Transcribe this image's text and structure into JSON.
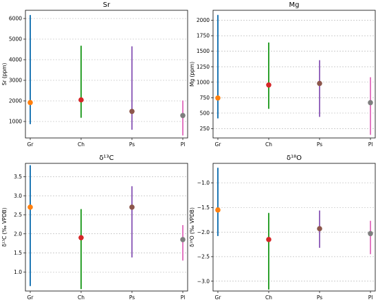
{
  "colors": {
    "Gr": "#1f77b4",
    "Ch": "#2ca02c",
    "Ps": "#9467bd",
    "Pl": "#e377c2",
    "marker_Gr": "#ff7f0e",
    "marker_Ch": "#d62728",
    "marker_Ps": "#8c564b",
    "marker_Pl": "#7f7f7f"
  },
  "chart_data": [
    {
      "type": "scatter",
      "title": "Sr",
      "xlabel": "",
      "ylabel": "Sr (ppm)",
      "categories": [
        "Gr",
        "Ch",
        "Ps",
        "Pl"
      ],
      "ylim": [
        200,
        6400
      ],
      "yticks": [
        1000,
        2000,
        3000,
        4000,
        5000,
        6000
      ],
      "grid": "y",
      "series": [
        {
          "values": [
            1920,
            2050,
            1490,
            1290
          ],
          "min": [
            870,
            1180,
            600,
            320
          ],
          "max": [
            6170,
            4680,
            4650,
            2020
          ]
        }
      ]
    },
    {
      "type": "scatter",
      "title": "Mg",
      "xlabel": "",
      "ylabel": "Mg (ppm)",
      "categories": [
        "Gr",
        "Ch",
        "Ps",
        "Pl"
      ],
      "ylim": [
        100,
        2160
      ],
      "yticks": [
        250,
        500,
        750,
        1000,
        1250,
        1500,
        1750,
        2000
      ],
      "grid": "y",
      "series": [
        {
          "values": [
            745,
            955,
            980,
            670
          ],
          "min": [
            415,
            570,
            440,
            150
          ],
          "max": [
            2085,
            1640,
            1355,
            1080
          ]
        }
      ]
    },
    {
      "type": "scatter",
      "title": "δ¹³C",
      "xlabel": "",
      "ylabel": "δ¹³C (‰ VPDB)",
      "categories": [
        "Gr",
        "Ch",
        "Ps",
        "Pl"
      ],
      "ylim": [
        0.5,
        3.85
      ],
      "yticks": [
        1.0,
        1.5,
        2.0,
        2.5,
        3.0,
        3.5
      ],
      "grid": "y",
      "series": [
        {
          "values": [
            2.7,
            1.9,
            2.7,
            1.85
          ],
          "min": [
            0.63,
            0.55,
            1.38,
            1.3
          ],
          "max": [
            3.8,
            2.65,
            3.25,
            2.23
          ]
        }
      ]
    },
    {
      "type": "scatter",
      "title": "δ¹⁸O",
      "xlabel": "",
      "ylabel": "δ¹⁸O (‰ VPDB)",
      "categories": [
        "Gr",
        "Ch",
        "Ps",
        "Pl"
      ],
      "ylim": [
        -3.2,
        -0.6
      ],
      "yticks": [
        -3.0,
        -2.5,
        -2.0,
        -1.5,
        -1.0
      ],
      "grid": "y",
      "series": [
        {
          "values": [
            -1.55,
            -2.15,
            -1.93,
            -2.03
          ],
          "min": [
            -2.08,
            -3.17,
            -2.32,
            -2.45
          ],
          "max": [
            -0.69,
            -1.61,
            -1.56,
            -1.77
          ]
        }
      ]
    }
  ]
}
